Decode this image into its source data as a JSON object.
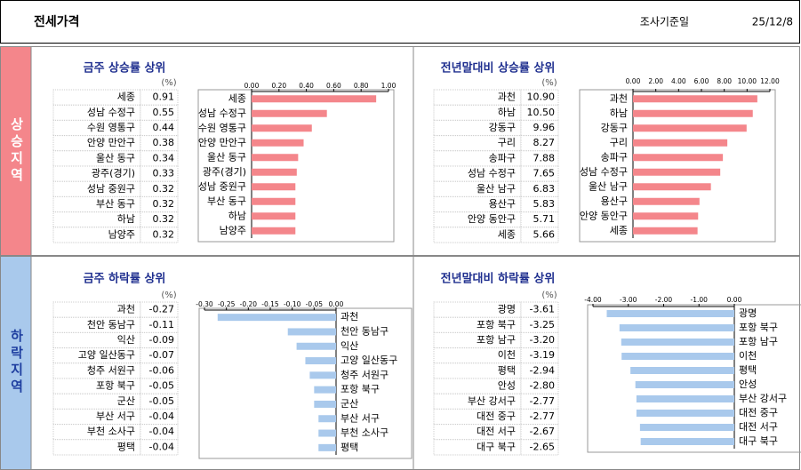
{
  "header": {
    "title": "전세가격",
    "date_label": "조사기준일",
    "date": "25/12/8"
  },
  "sections": [
    "상승지역",
    "하락지역"
  ],
  "chart_data": [
    {
      "type": "bar",
      "title": "금주 상승률 상위",
      "unit": "(%)",
      "color": "#f4868b",
      "categories": [
        "세종",
        "성남 수정구",
        "수원 영통구",
        "안양 만안구",
        "울산 동구",
        "광주(경기)",
        "성남 중원구",
        "부산 동구",
        "하남",
        "남양주"
      ],
      "values": [
        0.91,
        0.55,
        0.44,
        0.38,
        0.34,
        0.33,
        0.32,
        0.32,
        0.32,
        0.32
      ],
      "xlim": [
        0,
        1
      ],
      "xticks": [
        {
          "value": 0,
          "label": "0.00"
        },
        {
          "value": 0.2,
          "label": "0.20"
        },
        {
          "value": 0.4,
          "label": "0.40"
        },
        {
          "value": 0.6,
          "label": "0.60"
        },
        {
          "value": 0.8,
          "label": "0.80"
        },
        {
          "value": 1,
          "label": "1.00"
        }
      ]
    },
    {
      "type": "bar",
      "title": "전년말대비 상승률 상위",
      "unit": "(%)",
      "color": "#f4868b",
      "categories": [
        "과천",
        "하남",
        "강동구",
        "구리",
        "송파구",
        "성남 수정구",
        "울산 남구",
        "용산구",
        "안양 동안구",
        "세종"
      ],
      "values": [
        10.9,
        10.5,
        9.96,
        8.27,
        7.88,
        7.65,
        6.83,
        5.83,
        5.71,
        5.66
      ],
      "value_labels": [
        "10.90",
        "10.50",
        "9.96",
        "8.27",
        "7.88",
        "7.65",
        "6.83",
        "5.83",
        "5.71",
        "5.66"
      ],
      "xlim": [
        0,
        12
      ],
      "xticks": [
        {
          "value": 0,
          "label": "0.00"
        },
        {
          "value": 2,
          "label": "2.00"
        },
        {
          "value": 4,
          "label": "4.00"
        },
        {
          "value": 6,
          "label": "6.00"
        },
        {
          "value": 8,
          "label": "8.00"
        },
        {
          "value": 10,
          "label": "10.00"
        },
        {
          "value": 12,
          "label": "12.00"
        }
      ]
    },
    {
      "type": "bar",
      "title": "금주 하락률 상위",
      "unit": "(%)",
      "color": "#a9c9ec",
      "categories": [
        "과천",
        "천안 동남구",
        "익산",
        "고양 일산동구",
        "청주 서원구",
        "포항 북구",
        "군산",
        "부산 서구",
        "부천 소사구",
        "평택"
      ],
      "values": [
        -0.27,
        -0.11,
        -0.09,
        -0.07,
        -0.06,
        -0.05,
        -0.05,
        -0.04,
        -0.04,
        -0.04
      ],
      "xlim": [
        -0.3,
        0
      ],
      "xticks": [
        {
          "value": -0.3,
          "label": "-0.30"
        },
        {
          "value": -0.25,
          "label": "-0.25"
        },
        {
          "value": -0.2,
          "label": "-0.20"
        },
        {
          "value": -0.15,
          "label": "-0.15"
        },
        {
          "value": -0.1,
          "label": "-0.10"
        },
        {
          "value": -0.05,
          "label": "-0.05"
        },
        {
          "value": 0,
          "label": "0.00"
        }
      ]
    },
    {
      "type": "bar",
      "title": "전년말대비 하락률 상위",
      "unit": "(%)",
      "color": "#a9c9ec",
      "categories": [
        "광명",
        "포항 북구",
        "포항 남구",
        "이천",
        "평택",
        "안성",
        "부산 강서구",
        "대전 중구",
        "대전 서구",
        "대구 북구"
      ],
      "values": [
        -3.61,
        -3.25,
        -3.2,
        -3.19,
        -2.94,
        -2.8,
        -2.77,
        -2.77,
        -2.67,
        -2.65
      ],
      "value_labels": [
        "-3.61",
        "-3.25",
        "-3.20",
        "-3.19",
        "-2.94",
        "-2.80",
        "-2.77",
        "-2.77",
        "-2.67",
        "-2.65"
      ],
      "xlim": [
        -4,
        0
      ],
      "xticks": [
        {
          "value": -4,
          "label": "-4.00"
        },
        {
          "value": -3,
          "label": "-3.00"
        },
        {
          "value": -2,
          "label": "-2.00"
        },
        {
          "value": -1,
          "label": "-1.00"
        },
        {
          "value": 0,
          "label": "0.00"
        }
      ]
    }
  ]
}
